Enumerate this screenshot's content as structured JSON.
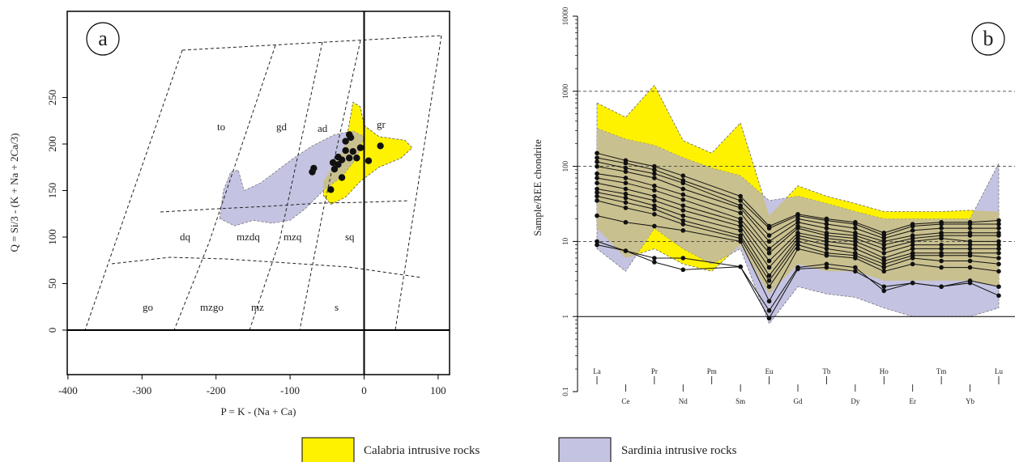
{
  "colors": {
    "calabria": "#fff200",
    "sardinia": "#c4c3e2",
    "overlap": "#c9c08f",
    "sample_points": "#111111"
  },
  "legend": [
    {
      "label": "Calabria intrusive rocks",
      "color": "#fff200"
    },
    {
      "label": "Sardinia intrusive rocks",
      "color": "#c4c3e2"
    }
  ],
  "chart_data": [
    {
      "panel": "a",
      "type": "scatter",
      "xlabel": "P = K - (Na + Ca)",
      "ylabel": "Q = Si/3 - (K + Na + 2Ca/3)",
      "xlim": [
        -400,
        110
      ],
      "ylim": [
        -20,
        270
      ],
      "x_ticks": [
        -400,
        -300,
        -200,
        -100,
        0,
        100
      ],
      "y_ticks": [
        0,
        50,
        100,
        150,
        200,
        250
      ],
      "tick_labels_x": [
        "-400",
        "-300",
        "-200",
        "-100",
        "0",
        "100"
      ],
      "tick_labels_y": [
        "0",
        "50",
        "100",
        "150",
        "200",
        "250"
      ],
      "field_labels": [
        "to",
        "gd",
        "ad",
        "gr",
        "dq",
        "mzdq",
        "mzq",
        "sq",
        "go",
        "mzgo",
        "mz",
        "s"
      ],
      "grid": false,
      "points": [
        {
          "x": -20,
          "y": 210
        },
        {
          "x": -18,
          "y": 207
        },
        {
          "x": -25,
          "y": 203
        },
        {
          "x": 22,
          "y": 198
        },
        {
          "x": -5,
          "y": 196
        },
        {
          "x": -25,
          "y": 193
        },
        {
          "x": -15,
          "y": 192
        },
        {
          "x": -35,
          "y": 186
        },
        {
          "x": -10,
          "y": 185
        },
        {
          "x": -20,
          "y": 185
        },
        {
          "x": -30,
          "y": 183
        },
        {
          "x": 6,
          "y": 182
        },
        {
          "x": -42,
          "y": 180
        },
        {
          "x": -35,
          "y": 178
        },
        {
          "x": -68,
          "y": 174
        },
        {
          "x": -70,
          "y": 170
        },
        {
          "x": -40,
          "y": 173
        },
        {
          "x": -30,
          "y": 164
        },
        {
          "x": -45,
          "y": 151
        }
      ],
      "calabria_field": [
        {
          "x": -55,
          "y": 160
        },
        {
          "x": -35,
          "y": 185
        },
        {
          "x": -25,
          "y": 200
        },
        {
          "x": -20,
          "y": 222
        },
        {
          "x": -15,
          "y": 245
        },
        {
          "x": -5,
          "y": 240
        },
        {
          "x": 0,
          "y": 220
        },
        {
          "x": 20,
          "y": 208
        },
        {
          "x": 55,
          "y": 204
        },
        {
          "x": 65,
          "y": 196
        },
        {
          "x": 50,
          "y": 185
        },
        {
          "x": 20,
          "y": 175
        },
        {
          "x": -5,
          "y": 160
        },
        {
          "x": -25,
          "y": 143
        },
        {
          "x": -45,
          "y": 135
        },
        {
          "x": -55,
          "y": 145
        }
      ],
      "sardinia_field": [
        {
          "x": -195,
          "y": 120
        },
        {
          "x": -190,
          "y": 150
        },
        {
          "x": -180,
          "y": 170
        },
        {
          "x": -170,
          "y": 172
        },
        {
          "x": -162,
          "y": 150
        },
        {
          "x": -140,
          "y": 158
        },
        {
          "x": -120,
          "y": 170
        },
        {
          "x": -95,
          "y": 185
        },
        {
          "x": -70,
          "y": 198
        },
        {
          "x": -40,
          "y": 210
        },
        {
          "x": -15,
          "y": 214
        },
        {
          "x": 0,
          "y": 208
        },
        {
          "x": -10,
          "y": 185
        },
        {
          "x": -30,
          "y": 165
        },
        {
          "x": -55,
          "y": 150
        },
        {
          "x": -80,
          "y": 130
        },
        {
          "x": -100,
          "y": 118
        },
        {
          "x": -125,
          "y": 115
        },
        {
          "x": -150,
          "y": 118
        },
        {
          "x": -175,
          "y": 112
        }
      ]
    },
    {
      "panel": "b",
      "type": "line",
      "ylabel": "Sample/REE chondrite",
      "yscale": "log",
      "ylim": [
        0.1,
        10000
      ],
      "y_ticks": [
        0.1,
        1,
        10,
        100,
        1000,
        10000
      ],
      "tick_labels_y": [
        "0.1",
        "1",
        "10",
        "100",
        "1000",
        "10000"
      ],
      "grid": "dashed at 10, 100, 1000",
      "categories": [
        "La",
        "Ce",
        "Pr",
        "Nd",
        "Pm",
        "Sm",
        "Eu",
        "Gd",
        "Tb",
        "Dy",
        "Ho",
        "Er",
        "Tm",
        "Yb",
        "Lu"
      ],
      "category_labels_top": [
        "La",
        "Pr",
        "Pm",
        "Eu",
        "Tb",
        "Ho",
        "Tm",
        "Lu"
      ],
      "category_labels_bottom": [
        "Ce",
        "Nd",
        "Sm",
        "Gd",
        "Dy",
        "Er",
        "Yb"
      ],
      "calabria_upper": [
        700,
        450,
        1200,
        220,
        150,
        380,
        22,
        55,
        40,
        32,
        25,
        25,
        25,
        26,
        25
      ],
      "calabria_lower": [
        15,
        6,
        8,
        5,
        4,
        9,
        2,
        5,
        4,
        4,
        3,
        3,
        3,
        3,
        2.5
      ],
      "sardinia_upper": [
        320,
        230,
        190,
        130,
        95,
        75,
        35,
        40,
        32,
        25,
        20,
        20,
        20,
        20,
        110
      ],
      "sardinia_lower": [
        8,
        4,
        15,
        8,
        5,
        8,
        0.8,
        2.5,
        2,
        1.8,
        1.3,
        1,
        1,
        1,
        1.3
      ],
      "series": [
        {
          "values": [
            150,
            120,
            100,
            75,
            null,
            40,
            16,
            23,
            20,
            18,
            13,
            17,
            18,
            18,
            19
          ]
        },
        {
          "values": [
            130,
            110,
            90,
            65,
            null,
            35,
            15,
            22,
            19,
            17,
            12,
            16,
            17,
            17,
            17
          ]
        },
        {
          "values": [
            115,
            95,
            80,
            60,
            null,
            30,
            12,
            20,
            17,
            15,
            11,
            14,
            15,
            15,
            15
          ]
        },
        {
          "values": [
            100,
            85,
            70,
            50,
            null,
            28,
            10,
            18,
            15,
            13,
            10,
            12,
            13,
            13,
            13
          ]
        },
        {
          "values": [
            80,
            70,
            55,
            42,
            null,
            24,
            8,
            16,
            13,
            12,
            9,
            11,
            12,
            12,
            12
          ]
        },
        {
          "values": [
            70,
            60,
            48,
            36,
            null,
            20,
            7,
            15,
            12,
            11,
            8,
            10,
            11,
            10,
            10
          ]
        },
        {
          "values": [
            60,
            50,
            40,
            30,
            null,
            18,
            5.5,
            13,
            11,
            10,
            7,
            9,
            9,
            9,
            9
          ]
        },
        {
          "values": [
            50,
            43,
            35,
            26,
            null,
            16,
            4.5,
            12,
            10,
            9,
            6,
            8,
            8,
            8,
            8
          ]
        },
        {
          "values": [
            45,
            38,
            30,
            22,
            null,
            14,
            3.5,
            11,
            9,
            8,
            5.5,
            7,
            7,
            7,
            7
          ]
        },
        {
          "values": [
            40,
            33,
            27,
            19,
            null,
            12,
            3,
            10,
            8,
            7,
            5,
            6.5,
            6.5,
            6.5,
            6
          ]
        },
        {
          "values": [
            35,
            28,
            23,
            17,
            null,
            11,
            2.5,
            9,
            7,
            6.5,
            4.5,
            6,
            5.5,
            5.5,
            5
          ]
        },
        {
          "values": [
            22,
            18,
            16,
            14,
            null,
            10,
            1.6,
            8,
            6.5,
            6,
            4,
            5,
            4.5,
            4.5,
            4
          ],
          "note": null
        },
        {
          "values": [
            10,
            7.5,
            6,
            6,
            null,
            4.6,
            1.2,
            4.5,
            5,
            4.5,
            2.2,
            2.8,
            2.5,
            3,
            2.5
          ]
        },
        {
          "values": [
            9,
            7.5,
            5.3,
            4.2,
            null,
            4.6,
            0.95,
            4.3,
            4.5,
            4,
            2.5,
            2.8,
            2.5,
            2.8,
            1.9
          ]
        }
      ]
    }
  ]
}
